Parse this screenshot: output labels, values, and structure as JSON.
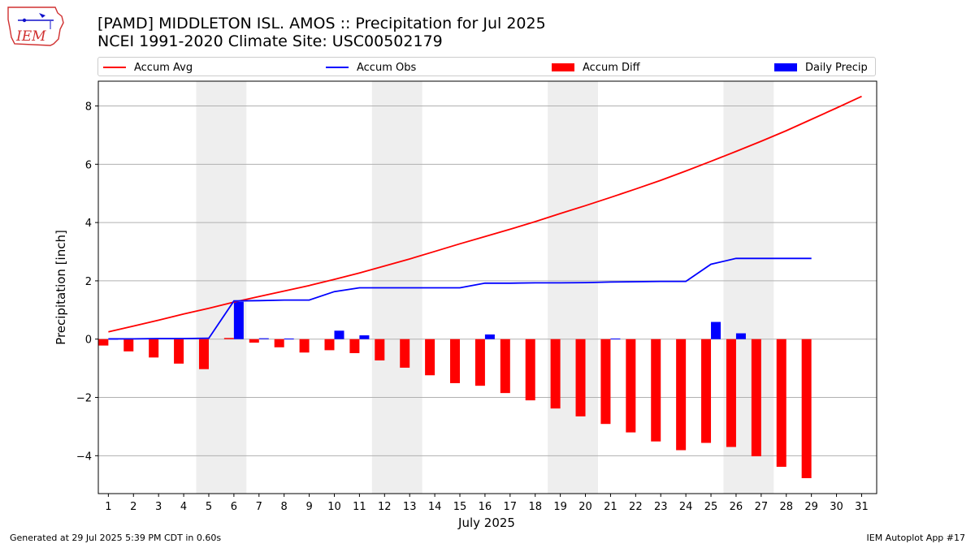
{
  "header": {
    "title_line1": "[PAMD] MIDDLETON ISL. AMOS :: Precipitation for Jul 2025",
    "title_line2": "NCEI 1991-2020 Climate Site: USC00502179",
    "logo_text": "IEM"
  },
  "footer": {
    "generated": "Generated at 29 Jul 2025 5:39 PM CDT in 0.60s",
    "app": "IEM Autoplot App #17"
  },
  "colors": {
    "avg": "#ff0000",
    "obs": "#0000ff",
    "diff": "#ff0000",
    "daily": "#0000ff",
    "weekend_shade": "#eeeeee",
    "grid": "#b0b0b0"
  },
  "chart_data": {
    "type": "bar",
    "xlabel": "July 2025",
    "ylabel": "Precipitation [inch]",
    "xlim": [
      0.6,
      31.6
    ],
    "ylim": [
      -5.3,
      8.85
    ],
    "yticks": [
      -4,
      -2,
      0,
      2,
      4,
      6,
      8
    ],
    "ytick_labels": [
      "−4",
      "−2",
      "0",
      "2",
      "4",
      "6",
      "8"
    ],
    "x_tick_labels": [
      "1",
      "2",
      "3",
      "4",
      "5",
      "6",
      "7",
      "8",
      "9",
      "10",
      "11",
      "12",
      "13",
      "14",
      "15",
      "16",
      "17",
      "18",
      "19",
      "20",
      "21",
      "22",
      "23",
      "24",
      "25",
      "26",
      "27",
      "28",
      "29",
      "30",
      "31"
    ],
    "grid": "y",
    "legend_position": "top",
    "weekend_shading": [
      [
        5,
        6
      ],
      [
        12,
        13
      ],
      [
        19,
        20
      ],
      [
        26,
        27
      ]
    ],
    "series": [
      {
        "name": "Accum Avg",
        "kind": "line",
        "x": [
          1,
          2,
          3,
          4,
          5,
          6,
          7,
          8,
          9,
          10,
          11,
          12,
          13,
          14,
          15,
          16,
          17,
          18,
          19,
          20,
          21,
          22,
          23,
          24,
          25,
          26,
          27,
          28,
          29,
          30,
          31
        ],
        "values": [
          0.25,
          0.45,
          0.65,
          0.86,
          1.06,
          1.27,
          1.46,
          1.65,
          1.84,
          2.05,
          2.27,
          2.51,
          2.75,
          3.01,
          3.27,
          3.52,
          3.77,
          4.03,
          4.31,
          4.58,
          4.86,
          5.15,
          5.45,
          5.77,
          6.1,
          6.44,
          6.79,
          7.15,
          7.54,
          7.93,
          8.33
        ]
      },
      {
        "name": "Accum Obs",
        "kind": "line",
        "x": [
          1,
          2,
          3,
          4,
          5,
          6,
          7,
          8,
          9,
          10,
          11,
          12,
          13,
          14,
          15,
          16,
          17,
          18,
          19,
          20,
          21,
          22,
          23,
          24,
          25,
          26,
          27,
          28,
          29
        ],
        "values": [
          0.01,
          0.01,
          0.02,
          0.02,
          0.03,
          1.31,
          1.32,
          1.34,
          1.34,
          1.63,
          1.76,
          1.76,
          1.76,
          1.76,
          1.76,
          1.92,
          1.92,
          1.93,
          1.93,
          1.94,
          1.96,
          1.97,
          1.98,
          1.98,
          2.57,
          2.77,
          2.77,
          2.77,
          2.77
        ]
      },
      {
        "name": "Accum Diff",
        "kind": "bar",
        "x": [
          1,
          2,
          3,
          4,
          5,
          6,
          7,
          8,
          9,
          10,
          11,
          12,
          13,
          14,
          15,
          16,
          17,
          18,
          19,
          20,
          21,
          22,
          23,
          24,
          25,
          26,
          27,
          28,
          29
        ],
        "values": [
          -0.22,
          -0.42,
          -0.63,
          -0.84,
          -1.03,
          0.04,
          -0.12,
          -0.28,
          -0.46,
          -0.38,
          -0.48,
          -0.73,
          -0.98,
          -1.24,
          -1.51,
          -1.6,
          -1.85,
          -2.1,
          -2.38,
          -2.65,
          -2.91,
          -3.2,
          -3.51,
          -3.81,
          -3.56,
          -3.7,
          -4.02,
          -4.38,
          -4.77
        ]
      },
      {
        "name": "Daily Precip",
        "kind": "bar",
        "x": [
          1,
          2,
          3,
          4,
          5,
          6,
          7,
          8,
          9,
          10,
          11,
          12,
          13,
          14,
          15,
          16,
          17,
          18,
          19,
          20,
          21,
          22,
          23,
          24,
          25,
          26,
          27,
          28,
          29
        ],
        "values": [
          0.01,
          0,
          0,
          0,
          0,
          1.28,
          0.03,
          0.02,
          0,
          0.29,
          0.13,
          0,
          0,
          0,
          0,
          0.16,
          0,
          0,
          0,
          0,
          0.02,
          0,
          0,
          0,
          0.59,
          0.2,
          0,
          0,
          0
        ]
      }
    ]
  }
}
